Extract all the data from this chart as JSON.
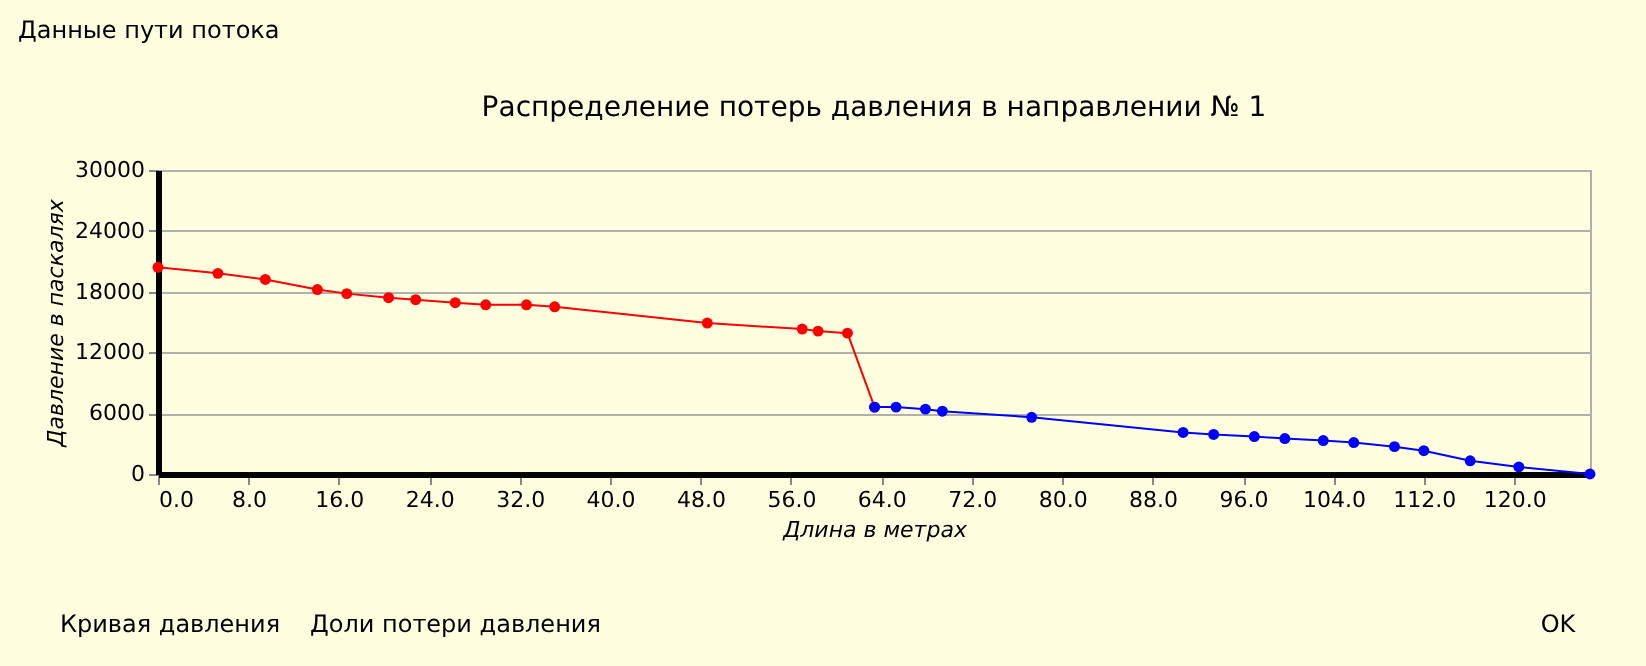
{
  "chart_data": {
    "type": "line",
    "title": "Распределение потерь давления в направлении № 1",
    "xlabel": "Длина в метрах",
    "ylabel": "Давление в паскалях",
    "annotations": [
      "Данные пути потока",
      "Кривая давления",
      "Доли потери давления",
      "OK"
    ],
    "xlim": [
      0,
      126.7
    ],
    "ylim": [
      0,
      30000
    ],
    "xticks": [
      {
        "value": 0,
        "label": "0.0"
      },
      {
        "value": 8,
        "label": "8.0"
      },
      {
        "value": 16,
        "label": "16.0"
      },
      {
        "value": 24,
        "label": "24.0"
      },
      {
        "value": 32,
        "label": "32.0"
      },
      {
        "value": 40,
        "label": "40.0"
      },
      {
        "value": 48,
        "label": "48.0"
      },
      {
        "value": 56,
        "label": "56.0"
      },
      {
        "value": 64,
        "label": "64.0"
      },
      {
        "value": 72,
        "label": "72.0"
      },
      {
        "value": 80,
        "label": "80.0"
      },
      {
        "value": 88,
        "label": "88.0"
      },
      {
        "value": 96,
        "label": "96.0"
      },
      {
        "value": 104,
        "label": "104.0"
      },
      {
        "value": 112,
        "label": "112.0"
      },
      {
        "value": 120,
        "label": "120.0"
      }
    ],
    "yticks": [
      0,
      6000,
      12000,
      18000,
      24000,
      30000
    ],
    "grid": "y",
    "legend": false,
    "marker": "circle",
    "line_style": "solid",
    "series": [
      {
        "color": "#ff0000",
        "x": [
          0,
          5.3,
          9.5,
          14.1,
          16.7,
          20.4,
          22.8,
          26.3,
          29.0,
          32.6,
          35.1,
          48.6,
          57.0,
          58.4,
          61.0,
          63.4
        ],
        "values": [
          20400,
          19800,
          19200,
          18200,
          17800,
          17400,
          17200,
          16900,
          16700,
          16700,
          16500,
          14900,
          14300,
          14100,
          13900,
          6600
        ]
      },
      {
        "color": "#0000ff",
        "x": [
          63.4,
          65.3,
          67.9,
          69.4,
          77.3,
          90.7,
          93.4,
          97.0,
          99.7,
          103.1,
          105.8,
          109.4,
          112.0,
          116.1,
          120.4,
          126.7
        ],
        "values": [
          6600,
          6600,
          6400,
          6200,
          5600,
          4100,
          3900,
          3700,
          3500,
          3300,
          3100,
          2700,
          2300,
          1300,
          700,
          0
        ]
      }
    ]
  }
}
